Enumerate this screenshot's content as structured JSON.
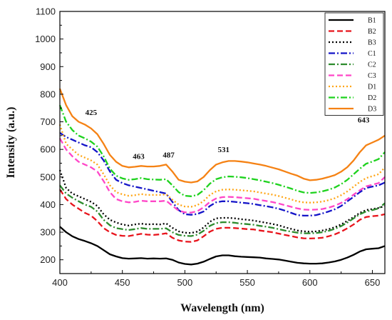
{
  "chart_data": {
    "type": "line",
    "title": "",
    "xlabel": "Wavelength (nm)",
    "ylabel": "Intensity (a.u.)",
    "xlim": [
      400,
      660
    ],
    "ylim": [
      150,
      1100
    ],
    "xticks": [
      400,
      450,
      500,
      550,
      600,
      650
    ],
    "yticks": [
      200,
      300,
      400,
      500,
      600,
      700,
      800,
      900,
      1000,
      1100
    ],
    "grid": false,
    "legend_position": "top-right",
    "x": [
      400,
      405,
      410,
      415,
      420,
      425,
      430,
      435,
      440,
      445,
      450,
      455,
      460,
      465,
      470,
      475,
      480,
      485,
      490,
      495,
      500,
      505,
      510,
      515,
      520,
      525,
      530,
      535,
      540,
      545,
      550,
      555,
      560,
      565,
      570,
      575,
      580,
      585,
      590,
      595,
      600,
      605,
      610,
      615,
      620,
      625,
      630,
      635,
      640,
      645,
      650,
      655,
      660
    ],
    "series": [
      {
        "name": "B1",
        "color": "#000000",
        "dash": "solid",
        "values": [
          320,
          300,
          285,
          275,
          268,
          260,
          250,
          235,
          220,
          212,
          206,
          204,
          205,
          206,
          204,
          205,
          204,
          205,
          200,
          190,
          185,
          183,
          186,
          193,
          203,
          212,
          216,
          216,
          213,
          211,
          210,
          209,
          208,
          205,
          203,
          201,
          197,
          193,
          189,
          187,
          186,
          186,
          187,
          190,
          194,
          200,
          208,
          218,
          230,
          238,
          240,
          242,
          250
        ]
      },
      {
        "name": "B2",
        "color": "#e8141c",
        "dash": "dash",
        "values": [
          455,
          420,
          400,
          385,
          370,
          360,
          340,
          315,
          300,
          290,
          287,
          286,
          290,
          294,
          291,
          290,
          292,
          296,
          280,
          270,
          266,
          265,
          270,
          285,
          302,
          312,
          316,
          316,
          315,
          313,
          311,
          310,
          306,
          303,
          300,
          295,
          290,
          286,
          281,
          278,
          277,
          278,
          280,
          285,
          292,
          302,
          314,
          328,
          345,
          355,
          358,
          360,
          365
        ]
      },
      {
        "name": "B3",
        "color": "#000000",
        "dash": "dot",
        "values": [
          525,
          460,
          440,
          430,
          420,
          410,
          395,
          365,
          345,
          335,
          328,
          324,
          328,
          331,
          328,
          329,
          328,
          332,
          316,
          303,
          298,
          297,
          302,
          317,
          338,
          350,
          352,
          352,
          350,
          347,
          345,
          342,
          338,
          334,
          330,
          325,
          318,
          312,
          306,
          303,
          302,
          303,
          306,
          311,
          318,
          328,
          341,
          355,
          370,
          380,
          384,
          388,
          395
        ]
      },
      {
        "name": "C1",
        "color": "#1414c8",
        "dash": "dashdot",
        "values": [
          660,
          645,
          635,
          625,
          615,
          608,
          590,
          560,
          520,
          490,
          478,
          470,
          465,
          460,
          455,
          450,
          445,
          440,
          410,
          380,
          365,
          363,
          366,
          375,
          395,
          408,
          412,
          412,
          410,
          407,
          405,
          402,
          398,
          394,
          390,
          385,
          378,
          370,
          362,
          360,
          360,
          362,
          368,
          375,
          383,
          395,
          412,
          428,
          445,
          460,
          465,
          470,
          480
        ]
      },
      {
        "name": "C2",
        "color": "#2d8c2d",
        "dash": "dashdot",
        "values": [
          470,
          440,
          425,
          412,
          400,
          392,
          375,
          345,
          325,
          315,
          311,
          308,
          311,
          315,
          312,
          312,
          312,
          314,
          300,
          290,
          287,
          286,
          291,
          305,
          323,
          333,
          336,
          336,
          334,
          331,
          329,
          327,
          323,
          320,
          316,
          311,
          306,
          302,
          298,
          296,
          296,
          297,
          300,
          305,
          312,
          322,
          335,
          350,
          365,
          375,
          380,
          386,
          405
        ]
      },
      {
        "name": "C3",
        "color": "#ff46c8",
        "dash": "dash",
        "values": [
          640,
          600,
          575,
          555,
          545,
          535,
          520,
          485,
          445,
          420,
          412,
          408,
          410,
          414,
          412,
          412,
          412,
          414,
          396,
          378,
          372,
          371,
          376,
          390,
          410,
          422,
          427,
          428,
          427,
          425,
          423,
          421,
          417,
          413,
          409,
          404,
          398,
          392,
          386,
          382,
          381,
          382,
          384,
          389,
          396,
          406,
          420,
          436,
          452,
          466,
          472,
          478,
          500
        ]
      },
      {
        "name": "D1",
        "color": "#ffa514",
        "dash": "dot",
        "values": [
          690,
          620,
          600,
          580,
          570,
          560,
          545,
          510,
          470,
          445,
          437,
          432,
          434,
          438,
          435,
          435,
          435,
          437,
          418,
          400,
          393,
          392,
          398,
          413,
          435,
          448,
          454,
          455,
          454,
          452,
          450,
          448,
          444,
          440,
          436,
          431,
          425,
          419,
          412,
          408,
          407,
          408,
          411,
          416,
          423,
          434,
          448,
          465,
          482,
          496,
          503,
          510,
          535
        ]
      },
      {
        "name": "D2",
        "color": "#1ed21e",
        "dash": "dashdot",
        "values": [
          760,
          700,
          670,
          650,
          640,
          628,
          610,
          575,
          530,
          505,
          495,
          490,
          492,
          496,
          492,
          491,
          490,
          492,
          470,
          445,
          432,
          430,
          435,
          452,
          476,
          492,
          499,
          502,
          501,
          499,
          496,
          492,
          488,
          483,
          478,
          472,
          465,
          458,
          450,
          444,
          442,
          444,
          448,
          454,
          462,
          474,
          490,
          510,
          530,
          548,
          556,
          565,
          590
        ]
      },
      {
        "name": "D3",
        "color": "#f58214",
        "dash": "solid",
        "values": [
          820,
          760,
          720,
          700,
          690,
          676,
          655,
          620,
          580,
          555,
          540,
          535,
          537,
          540,
          538,
          538,
          540,
          545,
          520,
          490,
          483,
          480,
          484,
          500,
          525,
          545,
          553,
          558,
          558,
          556,
          553,
          549,
          545,
          540,
          534,
          528,
          520,
          512,
          505,
          494,
          488,
          490,
          494,
          500,
          507,
          519,
          536,
          560,
          590,
          615,
          625,
          635,
          650
        ]
      }
    ],
    "annotations": [
      {
        "text": "425",
        "x": 425,
        "y": 725
      },
      {
        "text": "463",
        "x": 463,
        "y": 565
      },
      {
        "text": "487",
        "x": 487,
        "y": 570
      },
      {
        "text": "531",
        "x": 531,
        "y": 590
      },
      {
        "text": "643",
        "x": 643,
        "y": 698
      }
    ]
  }
}
